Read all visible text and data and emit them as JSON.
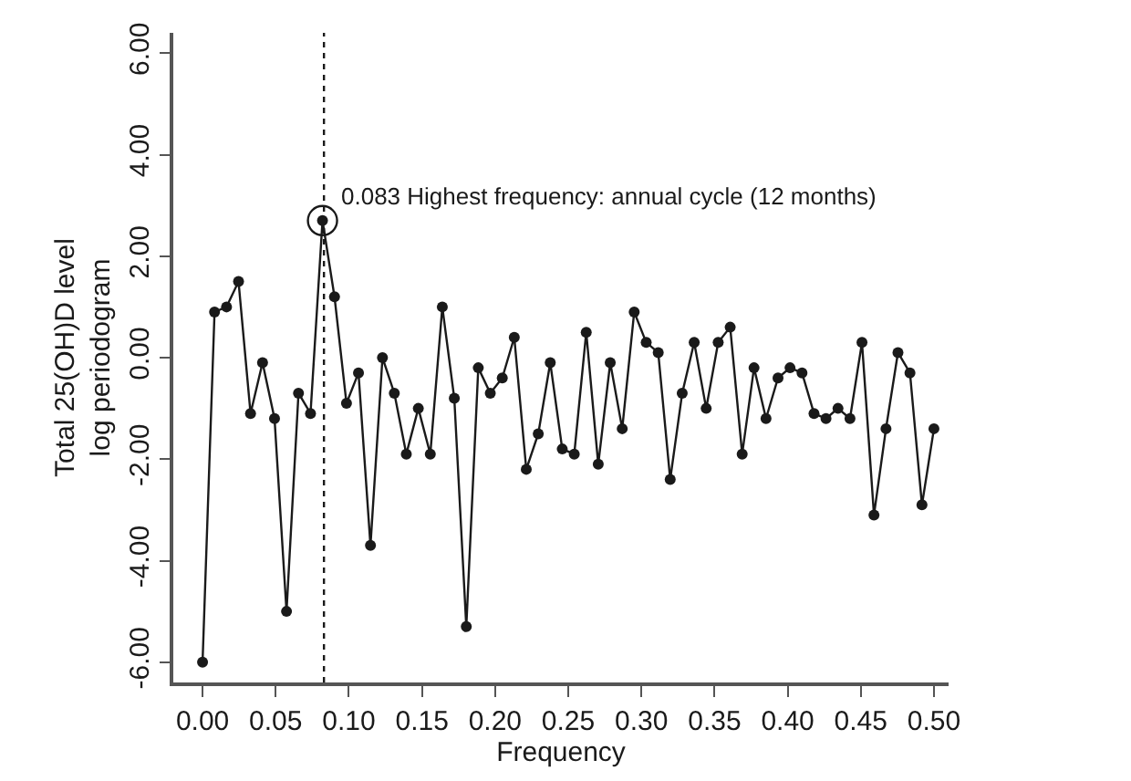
{
  "chart_data": {
    "type": "line",
    "xlabel": "Frequency",
    "ylabel": "Total 25(OH)D level\nlog periodogram",
    "x": [
      0,
      0.0082,
      0.0164,
      0.0246,
      0.0328,
      0.041,
      0.0492,
      0.0574,
      0.0656,
      0.0738,
      0.082,
      0.0902,
      0.0984,
      0.1066,
      0.1148,
      0.123,
      0.1311,
      0.1393,
      0.1475,
      0.1557,
      0.1639,
      0.1721,
      0.1803,
      0.1885,
      0.1967,
      0.2049,
      0.2131,
      0.2213,
      0.2295,
      0.2377,
      0.2459,
      0.2541,
      0.2623,
      0.2705,
      0.2787,
      0.2869,
      0.2951,
      0.3033,
      0.3115,
      0.3197,
      0.3279,
      0.3361,
      0.3443,
      0.3525,
      0.3607,
      0.3689,
      0.377,
      0.3852,
      0.3934,
      0.4016,
      0.4098,
      0.418,
      0.4262,
      0.4344,
      0.4426,
      0.4508,
      0.459,
      0.4672,
      0.4754,
      0.4836,
      0.4918,
      0.5
    ],
    "series": [
      {
        "color": "#1a1a1a",
        "values": [
          -6.0,
          0.9,
          1.0,
          1.5,
          -1.1,
          -0.1,
          -1.2,
          -5.0,
          -0.7,
          -1.1,
          2.7,
          1.2,
          -0.9,
          -0.3,
          -3.7,
          0.0,
          -0.7,
          -1.9,
          -1.0,
          -1.9,
          1.0,
          -0.8,
          -5.3,
          -0.2,
          -0.7,
          -0.4,
          0.4,
          -2.2,
          -1.5,
          -0.1,
          -1.8,
          -1.9,
          0.5,
          -2.1,
          -0.1,
          -1.4,
          0.9,
          0.3,
          0.1,
          -2.4,
          -0.7,
          0.3,
          -1.0,
          0.3,
          0.6,
          -1.9,
          -0.2,
          -1.2,
          -0.4,
          -0.2,
          -0.3,
          -1.1,
          -1.2,
          -1.0,
          -1.2,
          0.3,
          -3.1,
          -1.4,
          0.1,
          -0.3,
          -2.9,
          -1.4
        ]
      }
    ],
    "xlim": [
      -0.02,
      0.51
    ],
    "ylim": [
      -6.4,
      6.4
    ],
    "xticks": [
      {
        "value": 0,
        "label": "0.00"
      },
      {
        "value": 0.05,
        "label": "0.05"
      },
      {
        "value": 0.1,
        "label": "0.10"
      },
      {
        "value": 0.15,
        "label": "0.15"
      },
      {
        "value": 0.2,
        "label": "0.20"
      },
      {
        "value": 0.25,
        "label": "0.25"
      },
      {
        "value": 0.3,
        "label": "0.30"
      },
      {
        "value": 0.35,
        "label": "0.35"
      },
      {
        "value": 0.4,
        "label": "0.40"
      },
      {
        "value": 0.45,
        "label": "0.45"
      },
      {
        "value": 0.5,
        "label": "0.50"
      }
    ],
    "yticks": [
      {
        "value": -6,
        "label": "-6.00"
      },
      {
        "value": -4,
        "label": "-4.00"
      },
      {
        "value": -2,
        "label": "-2.00"
      },
      {
        "value": 0,
        "label": "0.00"
      },
      {
        "value": 2,
        "label": "2.00"
      },
      {
        "value": 4,
        "label": "4.00"
      },
      {
        "value": 6,
        "label": "6.00"
      }
    ],
    "ref_lines": [
      {
        "axis": "x",
        "value": 0.083,
        "line_style": "dotted",
        "color": "#1a1a1a"
      }
    ],
    "annotations": [
      {
        "text": "0.083 Highest frequency: annual cycle (12 months)",
        "x": 0.082,
        "y": 2.7
      }
    ],
    "marker": "circle",
    "line_style": "solid"
  }
}
